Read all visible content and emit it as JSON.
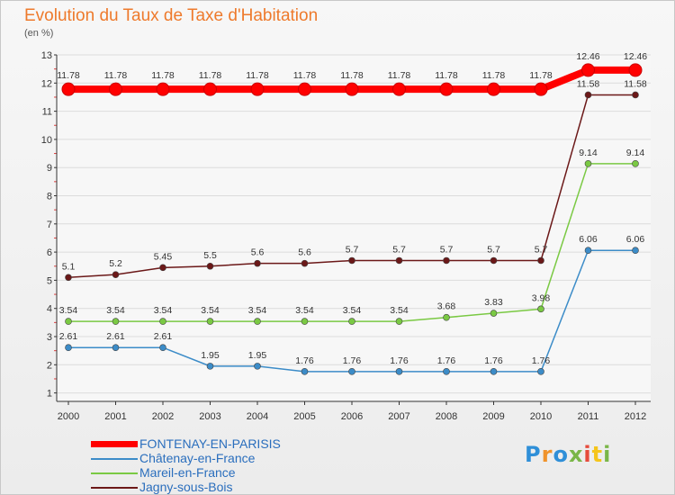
{
  "chart_title": "Evolution du Taux de Taxe d'Habitation",
  "chart_subtitle": "(en %)",
  "logo_text": "Proxiti",
  "logo_colors": [
    "#2f8fd8",
    "#f0932b",
    "#2f8fd8",
    "#7ab648",
    "#e64b3c",
    "#f5c51b",
    "#7ab648"
  ],
  "chart_data": {
    "type": "line",
    "title": "Evolution du Taux de Taxe d'Habitation",
    "subtitle": "(en %)",
    "x": [
      2000,
      2001,
      2002,
      2003,
      2004,
      2005,
      2006,
      2007,
      2008,
      2009,
      2010,
      2011,
      2012
    ],
    "ylim": [
      0.7,
      13
    ],
    "yticks": [
      1,
      2,
      3,
      4,
      5,
      6,
      7,
      8,
      9,
      10,
      11,
      12,
      13
    ],
    "grid": "horizontal",
    "legend": "bottom-left",
    "series": [
      {
        "name": "FONTENAY-EN-PARISIS",
        "color": "#ff0000",
        "values": [
          11.78,
          11.78,
          11.78,
          11.78,
          11.78,
          11.78,
          11.78,
          11.78,
          11.78,
          11.78,
          11.78,
          12.46,
          12.46
        ],
        "labels": [
          "11.78",
          "11.78",
          "11.78",
          "11.78",
          "11.78",
          "11.78",
          "11.78",
          "11.78",
          "11.78",
          "11.78",
          "11.78",
          "12.46",
          "12.46"
        ]
      },
      {
        "name": "Châtenay-en-France",
        "color": "#3c8cc8",
        "values": [
          2.61,
          2.61,
          2.61,
          1.95,
          1.95,
          1.76,
          1.76,
          1.76,
          1.76,
          1.76,
          1.76,
          6.06,
          6.06
        ],
        "labels": [
          "2.61",
          "2.61",
          "2.61",
          "1.95",
          "1.95",
          "1.76",
          "1.76",
          "1.76",
          "1.76",
          "1.76",
          "1.76",
          "6.06",
          "6.06"
        ]
      },
      {
        "name": "Mareil-en-France",
        "color": "#7ac943",
        "values": [
          3.54,
          3.54,
          3.54,
          3.54,
          3.54,
          3.54,
          3.54,
          3.54,
          3.68,
          3.83,
          3.98,
          9.14,
          9.14
        ],
        "labels": [
          "3.54",
          "3.54",
          "3.54",
          "3.54",
          "3.54",
          "3.54",
          "3.54",
          "3.54",
          "3.68",
          "3.83",
          "3.98",
          "9.14",
          "9.14"
        ]
      },
      {
        "name": "Jagny-sous-Bois",
        "color": "#6b1818",
        "values": [
          5.1,
          5.2,
          5.45,
          5.5,
          5.6,
          5.6,
          5.7,
          5.7,
          5.7,
          5.7,
          5.7,
          11.58,
          11.58
        ],
        "labels": [
          "5.1",
          "5.2",
          "5.45",
          "5.5",
          "5.6",
          "5.6",
          "5.7",
          "5.7",
          "5.7",
          "5.7",
          "5.7",
          "11.58",
          "11.58"
        ]
      }
    ]
  }
}
